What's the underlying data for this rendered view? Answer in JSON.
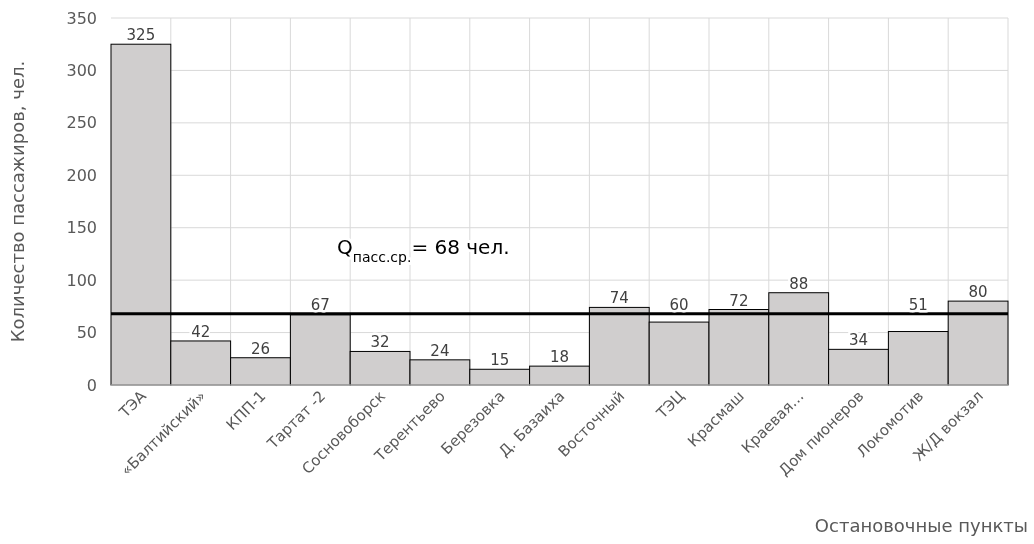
{
  "chart_data": {
    "type": "bar",
    "xlabel": "Остановочные пункты",
    "ylabel": "Количество пассажиров, чел.",
    "categories": [
      "ТЭА",
      "«Балтийский»",
      "КПП-1",
      "Тартат -2",
      "Сосновоборск",
      "Терентьево",
      "Березовка",
      "Д. Базаиха",
      "Восточный",
      "ТЭЦ",
      "Красмаш",
      "Краевая…",
      "Дом пионеров",
      "Локомотив",
      "Ж/Д вокзал"
    ],
    "values": [
      325,
      42,
      26,
      67,
      32,
      24,
      15,
      18,
      74,
      60,
      72,
      88,
      34,
      51,
      80
    ],
    "color": "#d0cece",
    "ylim": [
      0,
      350
    ],
    "yticks": [
      0,
      50,
      100,
      150,
      200,
      250,
      300,
      350
    ],
    "grid": true,
    "data_labels": true,
    "ref_lines": [
      {
        "axis": "y",
        "value": 68,
        "label": "Q$_{пасс.ср.}$= 68 чел.",
        "color": "#000000"
      }
    ]
  }
}
